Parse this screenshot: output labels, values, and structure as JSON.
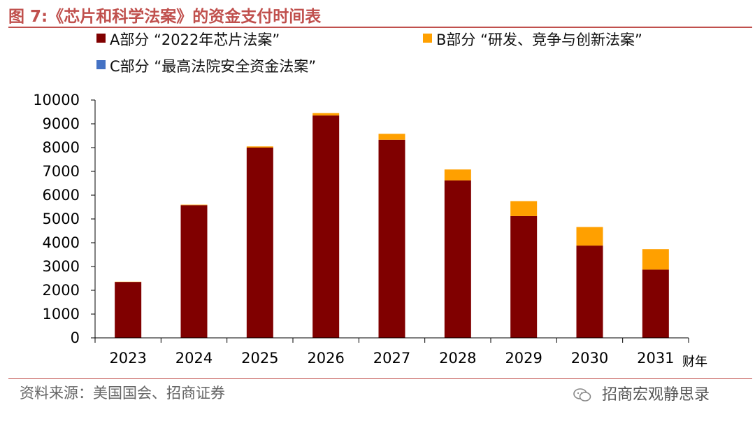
{
  "title": "图 7:《芯片和科学法案》的资金支付时间表",
  "source": "资料来源：美国国会、招商证券",
  "watermark": "招商宏观静思录",
  "watermark_icon": "wechat-icon",
  "chart_data": {
    "type": "bar",
    "stacked": true,
    "categories": [
      "2023",
      "2024",
      "2025",
      "2026",
      "2027",
      "2028",
      "2029",
      "2030",
      "2031"
    ],
    "xlabel": "财年",
    "ylabel": "",
    "ylim": [
      0,
      10000
    ],
    "yticks": [
      0,
      1000,
      2000,
      3000,
      4000,
      5000,
      6000,
      7000,
      8000,
      9000,
      10000
    ],
    "grid": false,
    "legend_position": "top",
    "series": [
      {
        "name": "A部分 “2022年芯片法案”",
        "color": "#800000",
        "values": [
          2350,
          5580,
          8000,
          9350,
          8330,
          6620,
          5120,
          3880,
          2870
        ]
      },
      {
        "name": "B部分 “研发、竞争与创新法案”",
        "color": "#FFA000",
        "values": [
          10,
          20,
          50,
          100,
          250,
          460,
          630,
          780,
          860
        ]
      },
      {
        "name": "C部分 “最高法院安全资金法案”",
        "color": "#4472C4",
        "values": [
          0,
          0,
          0,
          0,
          0,
          0,
          0,
          0,
          0
        ]
      }
    ]
  }
}
